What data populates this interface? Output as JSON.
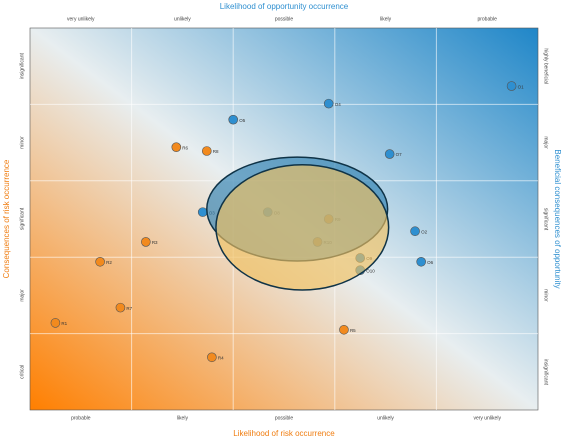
{
  "chart_data": {
    "type": "scatter",
    "title_top": "Likelihood of opportunity occurrence",
    "title_bottom": "Likelihood of risk occurrence",
    "title_left": "Consequences of risk occurrence",
    "title_right": "Beneficial consequences of opportunity",
    "top_categories": [
      "very unlikely",
      "unlikely",
      "possible",
      "likely",
      "probable"
    ],
    "bottom_categories": [
      "probable",
      "likely",
      "possible",
      "unlikely",
      "very unlikely"
    ],
    "left_categories": [
      "critical",
      "major",
      "significant",
      "minor",
      "insignificant"
    ],
    "right_categories": [
      "insignificant",
      "minor",
      "significant",
      "major",
      "highly beneficial"
    ],
    "xlim": [
      0,
      5
    ],
    "ylim": [
      0,
      5
    ],
    "grid": true,
    "series": [
      {
        "color": "#2e8fd0",
        "labels": [
          "O1",
          "O2",
          "O3",
          "O4",
          "O5",
          "O6",
          "O7",
          "O8",
          "O9",
          "O10"
        ],
        "x": [
          4.74,
          3.79,
          1.7,
          2.94,
          2.0,
          3.85,
          3.54,
          2.34,
          3.25,
          3.25
        ],
        "values": [
          4.24,
          2.34,
          2.59,
          4.01,
          3.8,
          1.94,
          3.35,
          2.59,
          1.99,
          1.83
        ]
      },
      {
        "color": "#f28a1e",
        "labels": [
          "R1",
          "R2",
          "R3",
          "R4",
          "R5",
          "R6",
          "R7",
          "R8",
          "R9",
          "R10"
        ],
        "x": [
          0.25,
          0.69,
          1.14,
          1.79,
          3.09,
          1.44,
          0.89,
          1.74,
          2.94,
          2.83
        ],
        "values": [
          1.14,
          1.94,
          2.2,
          0.69,
          1.05,
          3.44,
          1.34,
          3.39,
          2.5,
          2.2
        ]
      }
    ],
    "ellipses": [
      {
        "color": "#2e7fb0",
        "cx": 2.63,
        "cy": 2.63,
        "rx": 0.89,
        "ry": 0.68
      },
      {
        "color": "#f0c060",
        "cx": 2.68,
        "cy": 2.39,
        "rx": 0.85,
        "ry": 0.82
      }
    ]
  }
}
